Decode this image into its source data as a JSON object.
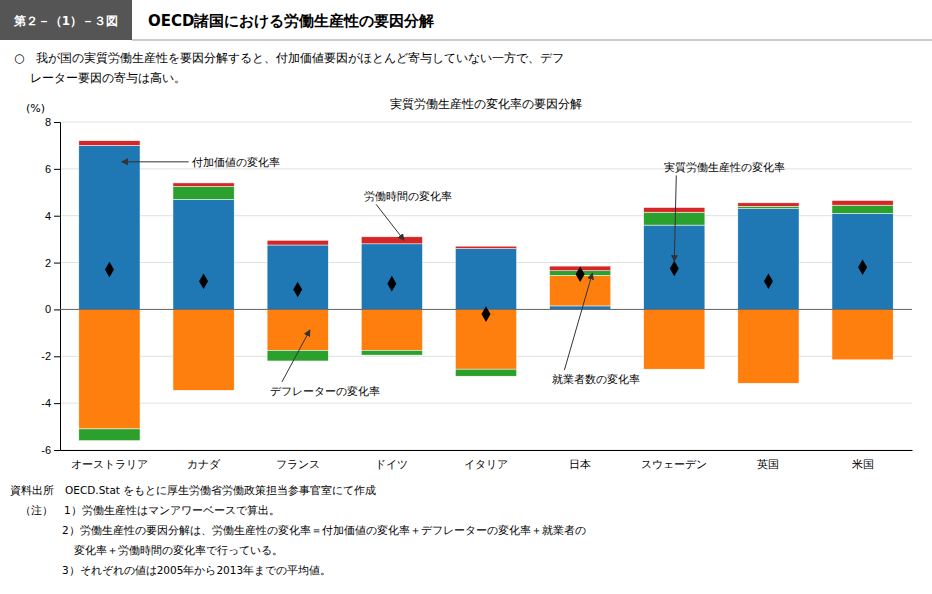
{
  "header_text": "第２－（1）－３図",
  "main_title": "OECD諸国における労働生産性の要因分解",
  "subtitle": [
    "○　我が国の実質労働生産性を要因分解すると、付加価値要因がほとんど寄与していない一方で、デフ",
    "レーター要因の寄与は高い。"
  ],
  "notes": [
    "資料出所　OECD.Stat をもとに厚生労働省労働政策担当参事官室にて作成",
    "（注）　1）労働生産性はマンアワーベースで算出。",
    "2）労働生産性の要因分解は、労働生産性の変化率＝付加価値の変化率＋デフレーターの変化率＋就業者の",
    "変化率＋労働時間の変化率で行っている。",
    "3）それぞれの値は2005年から2013年までの平均値。"
  ],
  "chart_data": {
    "type": "bar",
    "stacked": true,
    "title": "実質労働生産性の変化率の要因分解",
    "y_label": "(%)",
    "categories": [
      "オーストラリア",
      "カナダ",
      "フランス",
      "ドイツ",
      "イタリア",
      "日本",
      "スウェーデン",
      "英国",
      "米国"
    ],
    "series": [
      {
        "name": "付加価値の変化率",
        "values": [
          7.0,
          4.7,
          2.75,
          2.8,
          2.6,
          0.15,
          3.6,
          4.3,
          4.1
        ]
      },
      {
        "name": "デフレーターの変化率",
        "values": [
          -5.1,
          -3.45,
          -1.75,
          -1.75,
          -2.55,
          1.3,
          -2.55,
          -3.15,
          -2.15
        ]
      },
      {
        "name": "就業者数の変化率",
        "values": [
          -0.5,
          0.55,
          -0.45,
          -0.2,
          -0.3,
          0.2,
          0.55,
          0.1,
          0.35
        ]
      },
      {
        "name": "労働時間の変化率",
        "values": [
          0.2,
          0.15,
          0.2,
          0.3,
          0.1,
          0.2,
          0.2,
          0.15,
          0.2
        ]
      },
      {
        "name": "実質労働生産性の変化率",
        "type": "scatter",
        "marker": "diamond",
        "color": "black",
        "values": [
          1.7,
          1.2,
          0.85,
          1.1,
          -0.2,
          1.5,
          1.75,
          1.2,
          1.8
        ]
      }
    ],
    "ylim": [
      -6,
      8
    ],
    "yticks": [
      -6,
      -4,
      -2,
      0,
      2,
      4,
      6,
      8
    ],
    "grid": true
  }
}
